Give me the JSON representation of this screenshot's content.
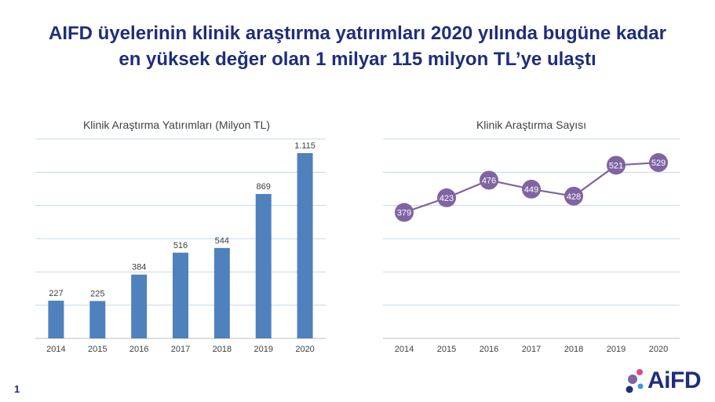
{
  "headline": {
    "line1": "AIFD üyelerinin klinik araştırma yatırımları 2020 yılında bugüne kadar",
    "line2": "en yüksek değer olan 1 milyar 115 milyon TL’ye ulaştı"
  },
  "page_number": "1",
  "logo": {
    "text": "AiFD",
    "icon": "molecule-dots-icon"
  },
  "colors": {
    "title": "#1f2e7a",
    "bar": "#4f81bd",
    "line": "#8064a2",
    "grid": "#c5d9e8"
  },
  "chart_data": [
    {
      "type": "bar",
      "title": "Klinik Araştırma Yatırımları (Milyon TL)",
      "categories": [
        "2014",
        "2015",
        "2016",
        "2017",
        "2018",
        "2019",
        "2020"
      ],
      "values": [
        227,
        225,
        384,
        516,
        544,
        869,
        1115
      ],
      "value_labels": [
        "227",
        "225",
        "384",
        "516",
        "544",
        "869",
        "1.115"
      ],
      "ylim": [
        0,
        1200
      ],
      "grid": true
    },
    {
      "type": "line",
      "title": "Klinik Araştırma Sayısı",
      "categories": [
        "2014",
        "2015",
        "2016",
        "2017",
        "2018",
        "2019",
        "2020"
      ],
      "values": [
        379,
        423,
        476,
        449,
        428,
        521,
        529
      ],
      "value_labels": [
        "379",
        "423",
        "476",
        "449",
        "428",
        "521",
        "529"
      ],
      "ylim": [
        0,
        600
      ],
      "grid": true
    }
  ]
}
